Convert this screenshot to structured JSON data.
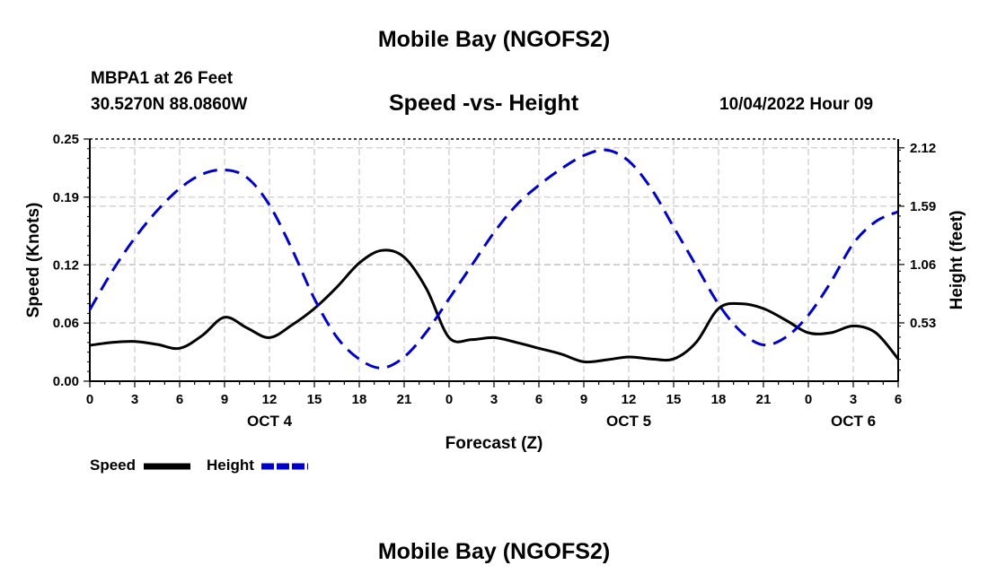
{
  "page": {
    "title_top": "Mobile Bay (NGOFS2)",
    "title_bottom": "Mobile Bay (NGOFS2)",
    "station": "MBPA1 at 26 Feet",
    "coords": "30.5270N  88.0860W",
    "subtitle": "Speed -vs- Height",
    "datetime": "10/04/2022 Hour 09"
  },
  "colors": {
    "speed": "#000000",
    "height": "#0000cc",
    "grid": "#c8c8c8"
  },
  "chart_data": {
    "type": "line",
    "title": "Speed -vs- Height",
    "xlabel": "Forecast (Z)",
    "ylabel_left": "Speed (Knots)",
    "ylabel_right": "Height (feet)",
    "x_range_hours": [
      0,
      54
    ],
    "x_ticks": [
      {
        "h": 0,
        "label": "0"
      },
      {
        "h": 3,
        "label": "3"
      },
      {
        "h": 6,
        "label": "6"
      },
      {
        "h": 9,
        "label": "9"
      },
      {
        "h": 12,
        "label": "12"
      },
      {
        "h": 15,
        "label": "15"
      },
      {
        "h": 18,
        "label": "18"
      },
      {
        "h": 21,
        "label": "21"
      },
      {
        "h": 24,
        "label": "0"
      },
      {
        "h": 27,
        "label": "3"
      },
      {
        "h": 30,
        "label": "6"
      },
      {
        "h": 33,
        "label": "9"
      },
      {
        "h": 36,
        "label": "12"
      },
      {
        "h": 39,
        "label": "15"
      },
      {
        "h": 42,
        "label": "18"
      },
      {
        "h": 45,
        "label": "21"
      },
      {
        "h": 48,
        "label": "0"
      },
      {
        "h": 51,
        "label": "3"
      },
      {
        "h": 54,
        "label": "6"
      }
    ],
    "date_labels": [
      {
        "h": 12,
        "label": "OCT 4"
      },
      {
        "h": 36,
        "label": "OCT 5"
      },
      {
        "h": 51,
        "label": "OCT 6"
      }
    ],
    "y_left": {
      "range": [
        0,
        0.25
      ],
      "ticks": [
        0,
        0.06,
        0.12,
        0.19,
        0.25
      ],
      "labels": [
        "0.00",
        "0.06",
        "0.12",
        "0.19",
        "0.25"
      ]
    },
    "y_right": {
      "range": [
        0,
        2.2
      ],
      "ticks": [
        0.53,
        1.06,
        1.59,
        2.12
      ],
      "labels": [
        "0.53",
        "1.06",
        "1.59",
        "2.12"
      ]
    },
    "series": [
      {
        "name": "Speed",
        "axis": "left",
        "x": [
          0,
          1.5,
          3,
          4.5,
          6,
          7.5,
          9,
          10.5,
          12,
          13.5,
          15,
          16.5,
          18,
          19.5,
          21,
          22.5,
          24,
          25.5,
          27,
          28.5,
          30,
          31.5,
          33,
          34.5,
          36,
          37.5,
          39,
          40.5,
          42,
          43.5,
          45,
          46.5,
          48,
          49.5,
          51,
          52.5,
          54
        ],
        "values": [
          0.037,
          0.04,
          0.041,
          0.038,
          0.034,
          0.047,
          0.066,
          0.055,
          0.045,
          0.058,
          0.075,
          0.097,
          0.122,
          0.135,
          0.128,
          0.095,
          0.045,
          0.043,
          0.045,
          0.04,
          0.034,
          0.028,
          0.02,
          0.022,
          0.025,
          0.023,
          0.023,
          0.04,
          0.075,
          0.08,
          0.075,
          0.063,
          0.05,
          0.05,
          0.057,
          0.05,
          0.023
        ]
      },
      {
        "name": "Height",
        "axis": "right",
        "x": [
          0,
          1.5,
          3,
          4.5,
          6,
          7.5,
          9,
          10.5,
          12,
          13.5,
          15,
          16.5,
          18,
          19.5,
          21,
          22.5,
          24,
          25.5,
          27,
          28.5,
          30,
          31.5,
          33,
          34.5,
          36,
          37.5,
          39,
          40.5,
          42,
          43.5,
          45,
          46.5,
          48,
          49.5,
          51,
          52.5,
          54
        ],
        "values": [
          0.65,
          1.0,
          1.3,
          1.55,
          1.75,
          1.88,
          1.92,
          1.85,
          1.6,
          1.2,
          0.75,
          0.4,
          0.2,
          0.12,
          0.22,
          0.45,
          0.75,
          1.05,
          1.35,
          1.6,
          1.78,
          1.93,
          2.05,
          2.1,
          2.0,
          1.75,
          1.4,
          1.05,
          0.7,
          0.45,
          0.33,
          0.4,
          0.6,
          0.9,
          1.25,
          1.45,
          1.54
        ]
      }
    ],
    "legend": [
      {
        "name": "Speed",
        "label": "Speed"
      },
      {
        "name": "Height",
        "label": "Height"
      }
    ]
  }
}
